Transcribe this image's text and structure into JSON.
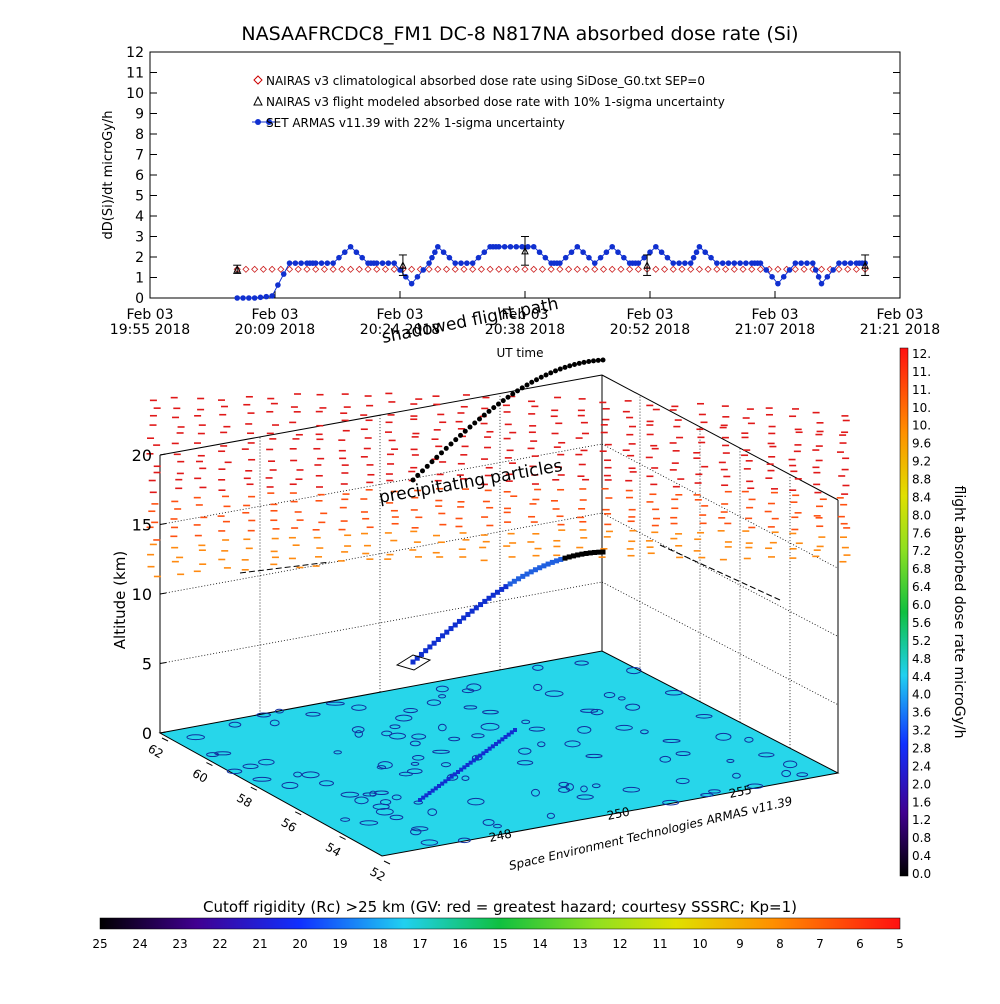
{
  "top_chart": {
    "title": "NASAAFRCDC8_FM1 DC-8    N817NA absorbed dose rate (Si)",
    "ylabel": "dD(Si)/dt microGy/h",
    "xlabel": "UT time",
    "yticks": [
      "0",
      "1",
      "2",
      "3",
      "4",
      "5",
      "6",
      "7",
      "8",
      "9",
      "10",
      "11",
      "12"
    ],
    "xticks": [
      {
        "l1": "Feb 03",
        "l2": "19:55 2018"
      },
      {
        "l1": "Feb 03",
        "l2": "20:09 2018"
      },
      {
        "l1": "Feb 03",
        "l2": "20:24 2018"
      },
      {
        "l1": "Feb 03",
        "l2": "20:38 2018"
      },
      {
        "l1": "Feb 03",
        "l2": "20:52 2018"
      },
      {
        "l1": "Feb 03",
        "l2": "21:07 2018"
      },
      {
        "l1": "Feb 03",
        "l2": "21:21 2018"
      }
    ],
    "legend": [
      {
        "label": "NAIRAS v3 climatological absorbed dose rate using SiDose_G0.txt SEP=0",
        "marker": "diamond",
        "color": "#cc0000"
      },
      {
        "label": "NAIRAS v3 flight modeled absorbed dose rate with 10% 1-sigma uncertainty",
        "marker": "triangle",
        "color": "#000000"
      },
      {
        "label": "SET ARMAS v11.39 with 22% 1-sigma uncertainty",
        "marker": "dot",
        "color": "#1030d0"
      }
    ]
  },
  "chart_data": [
    {
      "type": "scatter",
      "title": "NASAAFRCDC8_FM1 DC-8    N817NA absorbed dose rate (Si)",
      "xlabel": "UT time",
      "ylabel": "dD(Si)/dt microGy/h",
      "ylim": [
        0,
        12
      ],
      "xlim": [
        "19:55",
        "21:21"
      ],
      "series": [
        {
          "name": "SET ARMAS v11.39 with 22% 1-sigma uncertainty",
          "x": [
            "20:05",
            "20:07",
            "20:09",
            "20:11",
            "20:13",
            "20:14",
            "20:16",
            "20:18",
            "20:20",
            "20:21",
            "20:23",
            "20:25",
            "20:27",
            "20:28",
            "20:30",
            "20:32",
            "20:34",
            "20:35",
            "20:37",
            "20:39",
            "20:41",
            "20:42",
            "20:44",
            "20:46",
            "20:48",
            "20:50",
            "20:51",
            "20:53",
            "20:55",
            "20:57",
            "20:58",
            "21:00",
            "21:02",
            "21:04",
            "21:05",
            "21:07",
            "21:09",
            "21:11",
            "21:12",
            "21:14",
            "21:16",
            "21:17"
          ],
          "y": [
            0,
            0,
            0.1,
            1.7,
            1.7,
            1.7,
            1.7,
            2.5,
            1.7,
            1.7,
            1.7,
            0.7,
            1.7,
            2.5,
            1.7,
            1.7,
            2.5,
            2.5,
            2.5,
            2.5,
            1.7,
            1.7,
            2.5,
            1.7,
            2.5,
            1.7,
            1.7,
            2.5,
            1.7,
            1.7,
            2.5,
            1.7,
            1.7,
            1.7,
            1.7,
            0.7,
            1.7,
            1.7,
            0.7,
            1.7,
            1.7,
            1.7
          ]
        },
        {
          "name": "NAIRAS v3 climatological absorbed dose rate using SiDose_G0.txt SEP=0",
          "x": [
            "20:05",
            "21:17"
          ],
          "y": [
            1.4,
            1.4
          ]
        },
        {
          "name": "NAIRAS v3 flight modeled absorbed dose rate with 10% 1-sigma uncertainty",
          "x": [
            "20:05",
            "20:24",
            "20:38",
            "20:52",
            "21:17"
          ],
          "y": [
            1.4,
            1.6,
            2.3,
            1.6,
            1.6
          ],
          "error": [
            0.2,
            0.5,
            0.7,
            0.5,
            0.5
          ]
        }
      ]
    },
    {
      "type": "scatter",
      "ylabel": "Altitude (km)",
      "zticks": [
        "0",
        "5",
        "10",
        "15",
        "20"
      ],
      "lat_ticks": [
        "62",
        "60",
        "58",
        "56",
        "54",
        "52"
      ],
      "lon_ticks": [
        "248",
        "250",
        "255"
      ],
      "annotations": [
        "shadowed flight path",
        "precipitating particles"
      ]
    }
  ],
  "plot3d": {
    "zlabel": "Altitude (km)",
    "zticks": [
      "0",
      "5",
      "10",
      "15",
      "20"
    ],
    "lat_ticks": [
      "62",
      "60",
      "58",
      "56",
      "54",
      "52"
    ],
    "lon_ticks": [
      "248",
      "250",
      "255"
    ],
    "annotation_shadow": "shadowed flight path",
    "annotation_particles": "precipitating particles",
    "credit": "Space Environment Technologies ARMAS v11.39"
  },
  "colorbar_right": {
    "label": "flight absorbed dose rate microGy/h",
    "ticks": [
      "12.",
      "11.",
      "11.",
      "10.",
      "10.",
      "9.6",
      "9.2",
      "8.8",
      "8.4",
      "8.0",
      "7.6",
      "7.2",
      "6.8",
      "6.4",
      "6.0",
      "5.6",
      "5.2",
      "4.8",
      "4.4",
      "4.0",
      "3.6",
      "3.2",
      "2.8",
      "2.4",
      "2.0",
      "1.6",
      "1.2",
      "0.8",
      "0.4",
      "0.0"
    ]
  },
  "colorbar_bottom": {
    "title": "Cutoff rigidity (Rc) >25 km (GV: red = greatest hazard; courtesy SSSRC; Kp=1)",
    "ticks": [
      "25",
      "24",
      "23",
      "22",
      "21",
      "20",
      "19",
      "18",
      "17",
      "16",
      "15",
      "14",
      "13",
      "12",
      "11",
      "10",
      "9",
      "8",
      "7",
      "6",
      "5"
    ]
  }
}
